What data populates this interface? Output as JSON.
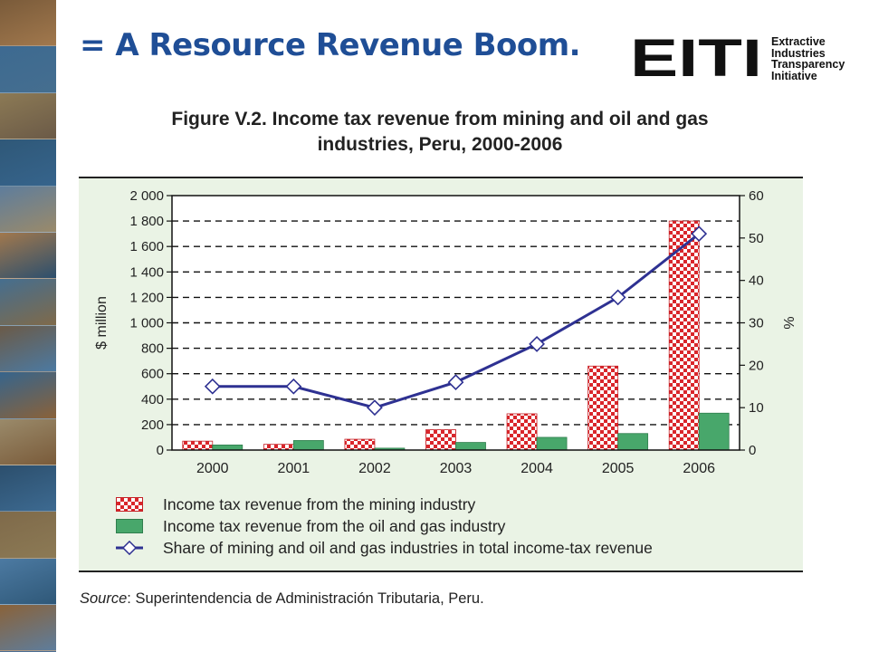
{
  "slide": {
    "title": "= A Resource Revenue Boom."
  },
  "logo": {
    "mark": "EITI",
    "words": [
      "Extractive",
      "Industries",
      "Transparency",
      "Initiative"
    ]
  },
  "figure": {
    "title_line1": "Figure V.2. Income tax revenue from mining and oil and gas",
    "title_line2": "industries, Peru, 2000-2006"
  },
  "legend": {
    "mining": "Income tax revenue from the mining industry",
    "oil_gas": "Income tax revenue from the oil and gas industry",
    "share": "Share of mining and oil and gas industries in total income-tax revenue"
  },
  "source": {
    "label": "Source",
    "text": ":  Superintendencia de Administración Tributaria, Peru."
  },
  "colors": {
    "title_blue": "#1f4e96",
    "mining_red": "#d9262b",
    "oil_green": "#48a76b",
    "share_line": "#2e3192",
    "chart_bg": "#eaf3e5"
  },
  "chart_data": {
    "type": "bar",
    "categories": [
      "2000",
      "2001",
      "2002",
      "2003",
      "2004",
      "2005",
      "2006"
    ],
    "series": [
      {
        "name": "Income tax revenue from the mining industry",
        "axis": "left",
        "kind": "bar",
        "values": [
          70,
          45,
          85,
          160,
          285,
          660,
          1800
        ]
      },
      {
        "name": "Income tax revenue from the oil and gas industry",
        "axis": "left",
        "kind": "bar",
        "values": [
          40,
          75,
          15,
          60,
          100,
          130,
          290
        ]
      },
      {
        "name": "Share of mining and oil and gas industries in total income-tax revenue",
        "axis": "right",
        "kind": "line",
        "values": [
          15,
          15,
          10,
          16,
          25,
          36,
          51
        ]
      }
    ],
    "ylabel": "$ million",
    "ylabel_right": "%",
    "ylim": [
      0,
      2000
    ],
    "ylim_right": [
      0,
      60
    ],
    "yticks_left": [
      "0",
      "200",
      "400",
      "600",
      "800",
      "1 000",
      "1 200",
      "1 400",
      "1 600",
      "1 800",
      "2 000"
    ],
    "yticks_right": [
      "0",
      "10",
      "20",
      "30",
      "40",
      "50",
      "60"
    ],
    "grid": "dashed horizontal",
    "legend_position": "bottom"
  }
}
